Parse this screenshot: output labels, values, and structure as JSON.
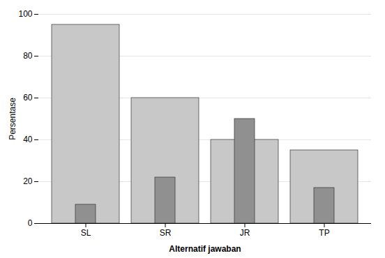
{
  "chart_data": {
    "type": "bar",
    "categories": [
      "SL",
      "SR",
      "JR",
      "TP"
    ],
    "series": [
      {
        "color": "#c8c8c8",
        "values": [
          95,
          60,
          40,
          35
        ]
      },
      {
        "color": "#909090",
        "values": [
          9,
          22,
          50,
          17
        ]
      }
    ],
    "xlabel": "Alternatif jawaban",
    "ylabel": "Persentase",
    "ylim": [
      0,
      100
    ],
    "yticks": [
      0,
      20,
      40,
      60,
      80,
      100
    ],
    "grid": true
  }
}
